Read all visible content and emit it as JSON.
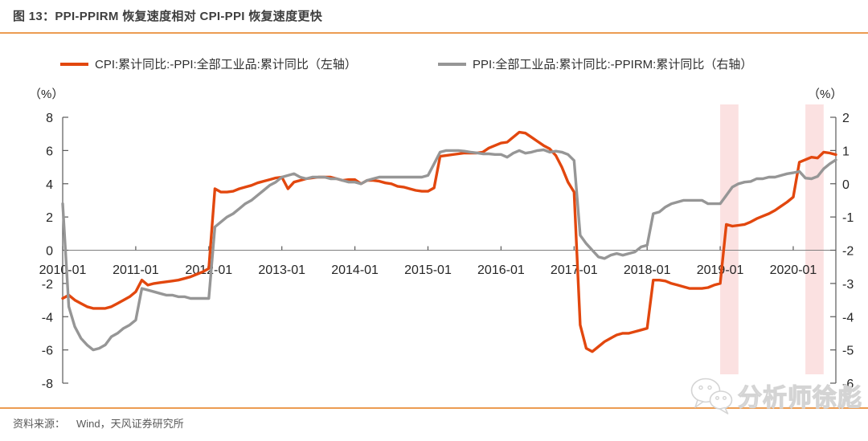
{
  "header": {
    "title": "图 13：PPI-PPIRM 恢复速度相对 CPI-PPI 恢复速度更快"
  },
  "footer": {
    "source_label": "资料来源：",
    "source_text": "Wind，天风证券研究所",
    "watermark_text": "分析师徐彪",
    "watermark_icon": "wechat-icon"
  },
  "colors": {
    "accent_rule": "#ec9c52",
    "series_red": "#e2470e",
    "series_gray": "#969696",
    "highlight_band": "#fbe1e1",
    "axis_line": "#595959",
    "zero_line": "#7f7f7f",
    "tick_text": "#262626"
  },
  "chart_data": {
    "type": "line",
    "title": "图 13：PPI-PPIRM 恢复速度相对 CPI-PPI 恢复速度更快",
    "x_tick_labels": [
      "2010-01",
      "2011-01",
      "2012-01",
      "2013-01",
      "2014-01",
      "2015-01",
      "2016-01",
      "2017-01",
      "2018-01",
      "2019-01",
      "2020-01"
    ],
    "x_start": "2010-01",
    "x_end": "2020-08",
    "grid": "zero-line-only",
    "legend_position": "top",
    "left_axis": {
      "unit": "（%）",
      "lim": [
        -8,
        8
      ],
      "ticks": [
        8,
        6,
        4,
        2,
        0,
        -2,
        -4,
        -6,
        -8
      ]
    },
    "right_axis": {
      "unit": "（%）",
      "lim": [
        -6,
        2
      ],
      "ticks": [
        2,
        1,
        0,
        -1,
        -2,
        -3,
        -4,
        -5,
        -6
      ]
    },
    "highlight_bands": [
      {
        "start": "2019-01",
        "end": "2019-04"
      },
      {
        "start": "2020-03",
        "end": "2020-06"
      }
    ],
    "series": [
      {
        "name": "CPI:累计同比:-PPI:全部工业品:累计同比（左轴）",
        "axis": "left",
        "color": "#e2470e",
        "start": "2010-01",
        "values": [
          -2.9,
          -2.7,
          -3.0,
          -3.2,
          -3.4,
          -3.5,
          -3.5,
          -3.5,
          -3.4,
          -3.2,
          -3.0,
          -2.8,
          -2.5,
          -1.8,
          -2.1,
          -2.0,
          -1.95,
          -1.9,
          -1.85,
          -1.8,
          -1.7,
          -1.6,
          -1.45,
          -1.3,
          -1.1,
          3.7,
          3.5,
          3.5,
          3.55,
          3.7,
          3.8,
          3.9,
          4.05,
          4.15,
          4.25,
          4.35,
          4.4,
          3.7,
          4.1,
          4.2,
          4.3,
          4.35,
          4.4,
          4.4,
          4.4,
          4.3,
          4.2,
          4.25,
          4.25,
          4.0,
          4.2,
          4.2,
          4.15,
          4.05,
          4.0,
          3.85,
          3.8,
          3.7,
          3.6,
          3.55,
          3.55,
          3.75,
          5.65,
          5.7,
          5.75,
          5.8,
          5.85,
          5.85,
          5.85,
          5.9,
          6.15,
          6.3,
          6.45,
          6.5,
          6.8,
          7.1,
          7.05,
          6.8,
          6.55,
          6.3,
          6.1,
          5.7,
          5.0,
          4.1,
          3.5,
          -4.5,
          -5.9,
          -6.1,
          -5.8,
          -5.5,
          -5.3,
          -5.1,
          -5.0,
          -5.0,
          -4.9,
          -4.8,
          -4.7,
          -1.8,
          -1.8,
          -1.85,
          -2.0,
          -2.1,
          -2.2,
          -2.3,
          -2.3,
          -2.3,
          -2.25,
          -2.1,
          -2.0,
          1.55,
          1.45,
          1.5,
          1.55,
          1.7,
          1.9,
          2.05,
          2.2,
          2.4,
          2.65,
          2.9,
          3.2,
          5.3,
          5.45,
          5.6,
          5.55,
          5.9,
          5.85,
          5.75
        ]
      },
      {
        "name": "PPI:全部工业品:累计同比:-PPIRM:累计同比（右轴）",
        "axis": "right",
        "color": "#969696",
        "start": "2010-01",
        "values": [
          -0.6,
          -3.7,
          -4.3,
          -4.65,
          -4.85,
          -5.0,
          -4.95,
          -4.85,
          -4.6,
          -4.5,
          -4.35,
          -4.25,
          -4.1,
          -3.15,
          -3.2,
          -3.25,
          -3.3,
          -3.35,
          -3.35,
          -3.4,
          -3.4,
          -3.45,
          -3.45,
          -3.45,
          -3.45,
          -1.3,
          -1.15,
          -1.0,
          -0.9,
          -0.75,
          -0.6,
          -0.5,
          -0.35,
          -0.2,
          -0.05,
          0.05,
          0.2,
          0.25,
          0.3,
          0.2,
          0.15,
          0.2,
          0.2,
          0.2,
          0.15,
          0.15,
          0.1,
          0.05,
          0.05,
          0.0,
          0.1,
          0.15,
          0.2,
          0.2,
          0.2,
          0.2,
          0.2,
          0.2,
          0.2,
          0.2,
          0.25,
          0.6,
          0.95,
          1.0,
          1.0,
          1.0,
          0.98,
          0.95,
          0.93,
          0.9,
          0.9,
          0.88,
          0.88,
          0.8,
          0.92,
          1.0,
          0.92,
          0.95,
          1.0,
          1.02,
          0.95,
          0.98,
          0.95,
          0.88,
          0.7,
          -1.55,
          -1.8,
          -2.0,
          -2.2,
          -2.25,
          -2.15,
          -2.1,
          -2.15,
          -2.1,
          -2.05,
          -1.9,
          -1.85,
          -0.9,
          -0.85,
          -0.7,
          -0.6,
          -0.55,
          -0.5,
          -0.5,
          -0.5,
          -0.5,
          -0.6,
          -0.6,
          -0.6,
          -0.35,
          -0.1,
          0.0,
          0.05,
          0.07,
          0.15,
          0.15,
          0.2,
          0.2,
          0.25,
          0.3,
          0.33,
          0.37,
          0.17,
          0.15,
          0.22,
          0.45,
          0.6,
          0.72
        ]
      }
    ]
  }
}
